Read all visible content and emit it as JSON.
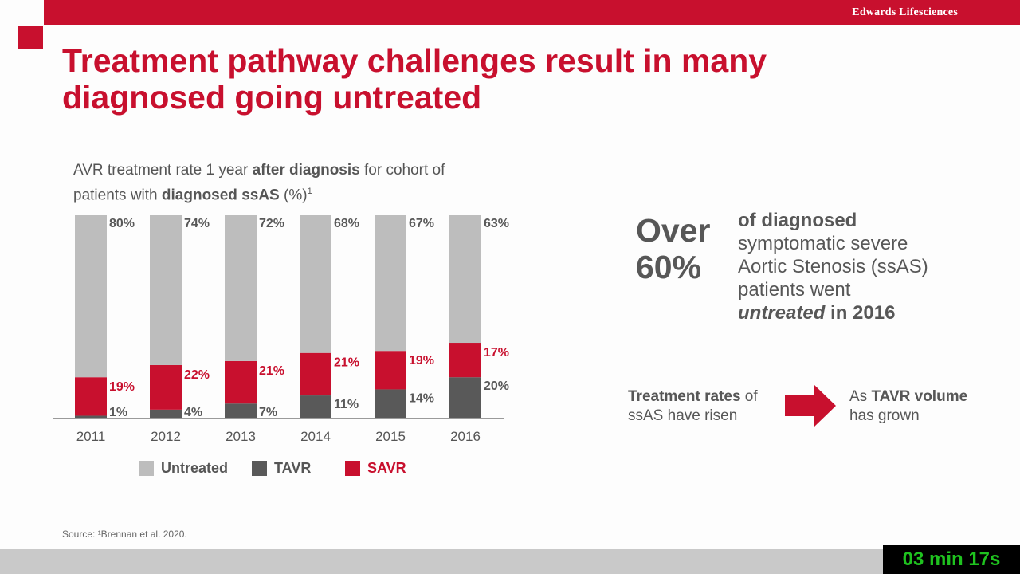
{
  "header": {
    "brand": "Edwards Lifesciences"
  },
  "title_line1": "Treatment pathway challenges result in many",
  "title_line2": "diagnosed going untreated",
  "subtitle": {
    "p1": "AVR treatment rate 1 year ",
    "b1": "after diagnosis",
    "p2": " for cohort of patients with ",
    "b2": "diagnosed ssAS",
    "p3": " (%)",
    "sup": "1"
  },
  "chart_data": {
    "type": "bar",
    "stacked": true,
    "categories": [
      "2011",
      "2012",
      "2013",
      "2014",
      "2015",
      "2016"
    ],
    "series": [
      {
        "name": "TAVR",
        "values": [
          1,
          4,
          7,
          11,
          14,
          20
        ],
        "color": "#595959"
      },
      {
        "name": "SAVR",
        "values": [
          19,
          22,
          21,
          21,
          19,
          17
        ],
        "color": "#c8102e"
      },
      {
        "name": "Untreated",
        "values": [
          80,
          74,
          72,
          68,
          67,
          63
        ],
        "color": "#bdbdbd"
      }
    ],
    "value_labels": {
      "TAVR": [
        "1%",
        "4%",
        "7%",
        "11%",
        "14%",
        "20%"
      ],
      "SAVR": [
        "19%",
        "22%",
        "21%",
        "21%",
        "19%",
        "17%"
      ],
      "Untreated": [
        "80%",
        "74%",
        "72%",
        "68%",
        "67%",
        "63%"
      ]
    },
    "legend": [
      {
        "label": "Untreated",
        "color": "#bdbdbd"
      },
      {
        "label": "TAVR",
        "color": "#595959"
      },
      {
        "label": "SAVR",
        "color": "#c8102e"
      }
    ],
    "legend_position": "bottom",
    "ylim": [
      0,
      100
    ],
    "grid": false
  },
  "callout": {
    "big": "Over 60%",
    "big_line1": "Over",
    "big_line2": "60%",
    "l1_b": "of diagnosed",
    "l2": "symptomatic severe",
    "l3": "Aortic Stenosis (ssAS)",
    "l4": "patients went",
    "l5_i": "untreated",
    "l5_b": " in 2016"
  },
  "rates": {
    "b": "Treatment rates",
    "p1": " of",
    "p2": "ssAS have risen"
  },
  "grown": {
    "p1": "As ",
    "b": "TAVR volume",
    "p2": "has grown"
  },
  "colors": {
    "accent": "#c8102e",
    "dark_gray": "#595959",
    "light_gray": "#bdbdbd"
  },
  "footer": {
    "source": "Source: ¹Brennan et al. 2020."
  },
  "timer": "03 min 17s"
}
